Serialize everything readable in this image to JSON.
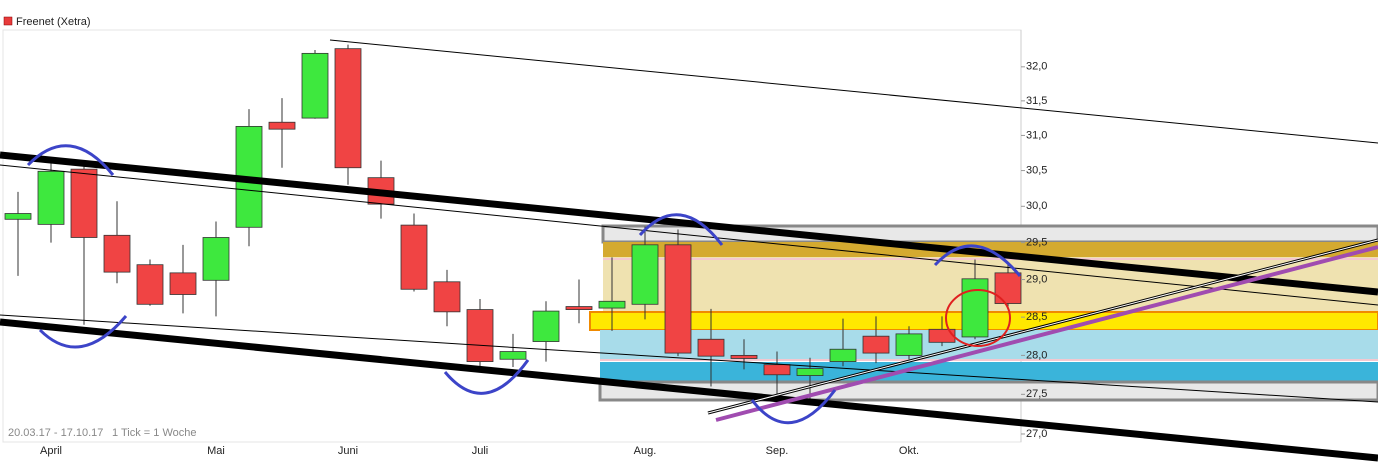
{
  "chart_data": {
    "type": "candlestick",
    "title": "Freenet (Xetra)",
    "date_range": "20.03.17 - 17.10.17",
    "tick_note": "1 Tick = 1 Woche",
    "categories": [
      null,
      "April",
      null,
      null,
      null,
      null,
      "Mai",
      null,
      null,
      null,
      "Juni",
      null,
      null,
      null,
      "Juli",
      null,
      null,
      null,
      null,
      "Aug.",
      null,
      null,
      null,
      "Sep.",
      null,
      null,
      null,
      "Okt.",
      null,
      null,
      null
    ],
    "up_color": "#3ee83e",
    "down_color": "#f04444",
    "series": [
      {
        "name": "Freenet (Xetra)",
        "color": "#e83b3b",
        "open": [
          29.82,
          29.75,
          30.52,
          29.6,
          29.2,
          29.09,
          28.99,
          29.71,
          31.19,
          31.25,
          32.27,
          30.4,
          29.74,
          28.97,
          28.6,
          27.95,
          28.18,
          28.64,
          28.62,
          28.67,
          29.47,
          28.21,
          28.0,
          27.88,
          27.74,
          27.92,
          28.25,
          28.0,
          28.34,
          28.24,
          29.09
        ],
        "high": [
          30.2,
          30.6,
          30.64,
          30.07,
          29.27,
          29.47,
          29.79,
          31.38,
          31.54,
          32.25,
          32.33,
          30.64,
          29.9,
          29.13,
          28.74,
          28.28,
          28.71,
          29.0,
          29.3,
          29.72,
          29.68,
          28.61,
          28.21,
          28.05,
          27.97,
          28.48,
          28.51,
          28.38,
          28.51,
          29.27,
          29.22
        ],
        "low": [
          29.05,
          29.5,
          28.4,
          28.95,
          28.65,
          28.55,
          28.51,
          29.45,
          30.54,
          31.24,
          30.3,
          29.83,
          28.84,
          28.38,
          27.8,
          27.85,
          27.92,
          28.42,
          28.32,
          28.47,
          27.99,
          27.6,
          27.82,
          27.44,
          27.41,
          27.86,
          27.9,
          27.95,
          28.12,
          28.21,
          28.64
        ],
        "close": [
          29.9,
          30.49,
          29.57,
          29.1,
          28.67,
          28.8,
          29.57,
          31.13,
          31.09,
          32.2,
          30.54,
          30.03,
          28.87,
          28.57,
          27.92,
          28.05,
          28.58,
          28.6,
          28.71,
          29.47,
          28.03,
          27.99,
          27.96,
          27.75,
          27.83,
          28.08,
          28.03,
          28.28,
          28.17,
          29.01,
          28.68
        ]
      }
    ],
    "ylim": [
      26.9,
      32.55
    ],
    "log_scale": true,
    "yticks": [
      {
        "value": 27,
        "label": "27,0"
      },
      {
        "value": 27.5,
        "label": "27,5"
      },
      {
        "value": 28,
        "label": "28,0"
      },
      {
        "value": 28.5,
        "label": "28,5"
      },
      {
        "value": 29,
        "label": "29,0"
      },
      {
        "value": 29.5,
        "label": "29,5"
      },
      {
        "value": 30,
        "label": "30,0"
      },
      {
        "value": 30.5,
        "label": "30,5"
      },
      {
        "value": 31,
        "label": "31,0"
      },
      {
        "value": 31.5,
        "label": "31,5"
      },
      {
        "value": 32,
        "label": "32,0"
      }
    ]
  }
}
